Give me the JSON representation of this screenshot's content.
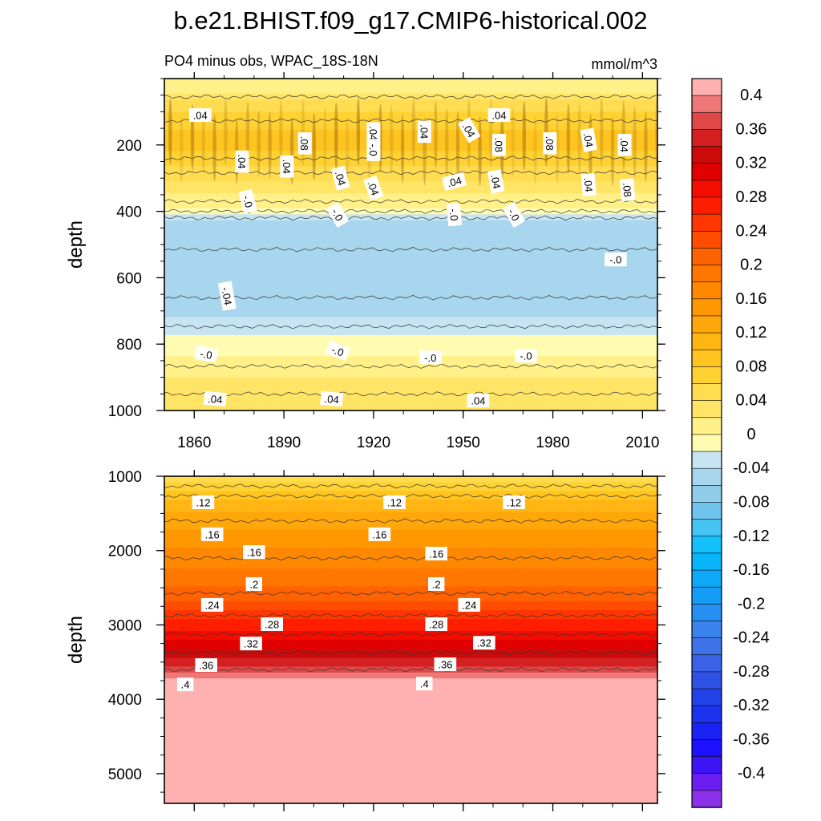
{
  "colors": {
    "levels": [
      {
        "value": -0.42,
        "hex": "#8a30e8"
      },
      {
        "value": -0.4,
        "hex": "#6a1ff0"
      },
      {
        "value": -0.38,
        "hex": "#3c14f5"
      },
      {
        "value": -0.36,
        "hex": "#1c10ff"
      },
      {
        "value": -0.34,
        "hex": "#1a22f6"
      },
      {
        "value": -0.32,
        "hex": "#1b33ee"
      },
      {
        "value": -0.3,
        "hex": "#2241e6"
      },
      {
        "value": -0.28,
        "hex": "#2d52e4"
      },
      {
        "value": -0.26,
        "hex": "#3a62e6"
      },
      {
        "value": -0.24,
        "hex": "#3f73e8"
      },
      {
        "value": -0.22,
        "hex": "#3a82ec"
      },
      {
        "value": -0.2,
        "hex": "#268ff2"
      },
      {
        "value": -0.18,
        "hex": "#159cf6"
      },
      {
        "value": -0.16,
        "hex": "#0ea8f8"
      },
      {
        "value": -0.14,
        "hex": "#0ab4fb"
      },
      {
        "value": -0.12,
        "hex": "#12c0fc"
      },
      {
        "value": -0.1,
        "hex": "#45c3f3"
      },
      {
        "value": -0.08,
        "hex": "#70c5ee"
      },
      {
        "value": -0.06,
        "hex": "#8fcdeb"
      },
      {
        "value": -0.04,
        "hex": "#a8d6ee"
      },
      {
        "value": -0.02,
        "hex": "#c6e4f2"
      },
      {
        "value": 0.0,
        "hex": "#fffbb0"
      },
      {
        "value": 0.02,
        "hex": "#fff088"
      },
      {
        "value": 0.04,
        "hex": "#ffe466"
      },
      {
        "value": 0.06,
        "hex": "#ffdc50"
      },
      {
        "value": 0.08,
        "hex": "#ffd233"
      },
      {
        "value": 0.1,
        "hex": "#ffc41f"
      },
      {
        "value": 0.12,
        "hex": "#ffb514"
      },
      {
        "value": 0.14,
        "hex": "#ffa60a"
      },
      {
        "value": 0.16,
        "hex": "#ff9800"
      },
      {
        "value": 0.18,
        "hex": "#ff8800"
      },
      {
        "value": 0.2,
        "hex": "#ff7700"
      },
      {
        "value": 0.22,
        "hex": "#ff6200"
      },
      {
        "value": 0.24,
        "hex": "#ff4d00"
      },
      {
        "value": 0.26,
        "hex": "#ff3600"
      },
      {
        "value": 0.28,
        "hex": "#ff1f00"
      },
      {
        "value": 0.3,
        "hex": "#f20d00"
      },
      {
        "value": 0.32,
        "hex": "#e00000"
      },
      {
        "value": 0.34,
        "hex": "#cc0a0a"
      },
      {
        "value": 0.36,
        "hex": "#d42020"
      },
      {
        "value": 0.38,
        "hex": "#e04848"
      },
      {
        "value": 0.4,
        "hex": "#ee7777"
      },
      {
        "value": 0.42,
        "hex": "#ffb0b0"
      }
    ],
    "contour_line": "#333333"
  },
  "chart_data": {
    "type": "heatmap",
    "title": "b.e21.BHIST.f09_g17.CMIP6-historical.002",
    "subtitle_left": "PO4 minus obs, WPAC_18S-18N",
    "subtitle_right": "mmol/m^3",
    "colorbar": {
      "labels": [
        "0.4",
        "0.36",
        "0.32",
        "0.28",
        "0.24",
        "0.2",
        "0.16",
        "0.12",
        "0.08",
        "0.04",
        "0",
        "-0.04",
        "-0.08",
        "-0.12",
        "-0.16",
        "-0.2",
        "-0.24",
        "-0.28",
        "-0.32",
        "-0.36",
        "-0.4"
      ]
    },
    "panels": [
      {
        "name": "upper",
        "ylabel": "depth",
        "xlim": [
          1850,
          2015
        ],
        "ylim": [
          0,
          1000
        ],
        "x_ticks": [
          1860,
          1890,
          1920,
          1950,
          1980,
          2010
        ],
        "x_tick_labels": [
          "1860",
          "1890",
          "1920",
          "1950",
          "1980",
          "2010"
        ],
        "y_ticks": [
          200,
          400,
          600,
          800,
          1000
        ],
        "y_tick_labels": [
          "200",
          "400",
          "600",
          "800",
          "1000"
        ],
        "profile": [
          {
            "depth": 30,
            "value": 0.02
          },
          {
            "depth": 80,
            "value": 0.06
          },
          {
            "depth": 150,
            "value": 0.09
          },
          {
            "depth": 200,
            "value": 0.1
          },
          {
            "depth": 260,
            "value": 0.07
          },
          {
            "depth": 330,
            "value": 0.04
          },
          {
            "depth": 390,
            "value": 0.01
          },
          {
            "depth": 430,
            "value": -0.03
          },
          {
            "depth": 600,
            "value": -0.05
          },
          {
            "depth": 720,
            "value": -0.03
          },
          {
            "depth": 800,
            "value": 0.0
          },
          {
            "depth": 900,
            "value": 0.03
          },
          {
            "depth": 1000,
            "value": 0.05
          }
        ],
        "contour_labels": [
          {
            "text": ".04",
            "x": 1862,
            "y": 110,
            "angle": 0
          },
          {
            "text": ".08",
            "x": 1897,
            "y": 195,
            "angle": 90
          },
          {
            "text": ".04",
            "x": 1876,
            "y": 250,
            "angle": 90
          },
          {
            "text": ".04",
            "x": 1891,
            "y": 265,
            "angle": 90
          },
          {
            "text": "-.0",
            "x": 1878,
            "y": 370,
            "angle": 75
          },
          {
            "text": ".04",
            "x": 1920,
            "y": 165,
            "angle": 90
          },
          {
            "text": "-.0",
            "x": 1920,
            "y": 215,
            "angle": 90
          },
          {
            "text": ".04",
            "x": 1909,
            "y": 300,
            "angle": 75
          },
          {
            "text": ".04",
            "x": 1920,
            "y": 330,
            "angle": 70
          },
          {
            "text": "-.0",
            "x": 1908,
            "y": 410,
            "angle": 60
          },
          {
            "text": ".04",
            "x": 1937,
            "y": 160,
            "angle": 90
          },
          {
            "text": ".04",
            "x": 1952,
            "y": 155,
            "angle": 60
          },
          {
            "text": ".04",
            "x": 1962,
            "y": 110,
            "angle": 0
          },
          {
            "text": ".08",
            "x": 1962,
            "y": 200,
            "angle": 90
          },
          {
            "text": ".08",
            "x": 1979,
            "y": 195,
            "angle": 90
          },
          {
            "text": ".04",
            "x": 1992,
            "y": 185,
            "angle": 80
          },
          {
            "text": ".04",
            "x": 2004,
            "y": 200,
            "angle": 90
          },
          {
            "text": ".04",
            "x": 1947,
            "y": 310,
            "angle": -15
          },
          {
            "text": ".04",
            "x": 1961,
            "y": 310,
            "angle": 80
          },
          {
            "text": ".04",
            "x": 1992,
            "y": 320,
            "angle": 85
          },
          {
            "text": ".08",
            "x": 2005,
            "y": 335,
            "angle": 85
          },
          {
            "text": "-.0",
            "x": 1947,
            "y": 410,
            "angle": 85
          },
          {
            "text": "-.0",
            "x": 1967,
            "y": 410,
            "angle": 60
          },
          {
            "text": "-.0",
            "x": 2001,
            "y": 545,
            "angle": 0
          },
          {
            "text": "-.04",
            "x": 1871,
            "y": 655,
            "angle": 80
          },
          {
            "text": "-.0",
            "x": 1864,
            "y": 830,
            "angle": 10
          },
          {
            "text": "-.0",
            "x": 1908,
            "y": 820,
            "angle": 20
          },
          {
            "text": "-.0",
            "x": 1939,
            "y": 840,
            "angle": 0
          },
          {
            "text": "-.0",
            "x": 1971,
            "y": 835,
            "angle": 0
          },
          {
            "text": ".04",
            "x": 1867,
            "y": 965,
            "angle": 5
          },
          {
            "text": ".04",
            "x": 1906,
            "y": 965,
            "angle": 5
          },
          {
            "text": ".04",
            "x": 1955,
            "y": 970,
            "angle": 0
          }
        ]
      },
      {
        "name": "lower",
        "ylabel": "depth",
        "xlim": [
          1850,
          2015
        ],
        "ylim": [
          1000,
          5400
        ],
        "x_ticks": [
          1860,
          1890,
          1920,
          1950,
          1980,
          2010
        ],
        "y_ticks": [
          1000,
          2000,
          3000,
          4000,
          5000
        ],
        "y_tick_labels": [
          "1000",
          "2000",
          "3000",
          "4000",
          "5000"
        ],
        "profile": [
          {
            "depth": 1000,
            "value": 0.06
          },
          {
            "depth": 1400,
            "value": 0.12
          },
          {
            "depth": 1800,
            "value": 0.16
          },
          {
            "depth": 2400,
            "value": 0.2
          },
          {
            "depth": 2750,
            "value": 0.24
          },
          {
            "depth": 3000,
            "value": 0.28
          },
          {
            "depth": 3250,
            "value": 0.32
          },
          {
            "depth": 3500,
            "value": 0.36
          },
          {
            "depth": 3700,
            "value": 0.4
          },
          {
            "depth": 3760,
            "value": 0.42
          },
          {
            "depth": 5400,
            "value": 0.42
          }
        ],
        "contour_labels": [
          {
            "text": ".12",
            "x": 1863,
            "y": 1350,
            "angle": 0
          },
          {
            "text": ".12",
            "x": 1927,
            "y": 1350,
            "angle": 0
          },
          {
            "text": ".12",
            "x": 1967,
            "y": 1350,
            "angle": 0
          },
          {
            "text": ".16",
            "x": 1866,
            "y": 1780,
            "angle": 0
          },
          {
            "text": ".16",
            "x": 1922,
            "y": 1780,
            "angle": 0
          },
          {
            "text": ".16",
            "x": 1880,
            "y": 2020,
            "angle": 0
          },
          {
            "text": ".16",
            "x": 1941,
            "y": 2040,
            "angle": 0
          },
          {
            "text": ".2",
            "x": 1880,
            "y": 2450,
            "angle": 0
          },
          {
            "text": ".2",
            "x": 1941,
            "y": 2450,
            "angle": 0
          },
          {
            "text": ".24",
            "x": 1866,
            "y": 2730,
            "angle": 0
          },
          {
            "text": ".24",
            "x": 1952,
            "y": 2730,
            "angle": 0
          },
          {
            "text": ".28",
            "x": 1886,
            "y": 2990,
            "angle": 0
          },
          {
            "text": ".28",
            "x": 1941,
            "y": 2990,
            "angle": 0
          },
          {
            "text": ".32",
            "x": 1879,
            "y": 3250,
            "angle": 0
          },
          {
            "text": ".32",
            "x": 1957,
            "y": 3240,
            "angle": 0
          },
          {
            "text": ".36",
            "x": 1864,
            "y": 3540,
            "angle": 0
          },
          {
            "text": ".36",
            "x": 1944,
            "y": 3530,
            "angle": 0
          },
          {
            "text": ".4",
            "x": 1857,
            "y": 3800,
            "angle": 0
          },
          {
            "text": ".4",
            "x": 1937,
            "y": 3790,
            "angle": 0
          }
        ]
      }
    ]
  }
}
